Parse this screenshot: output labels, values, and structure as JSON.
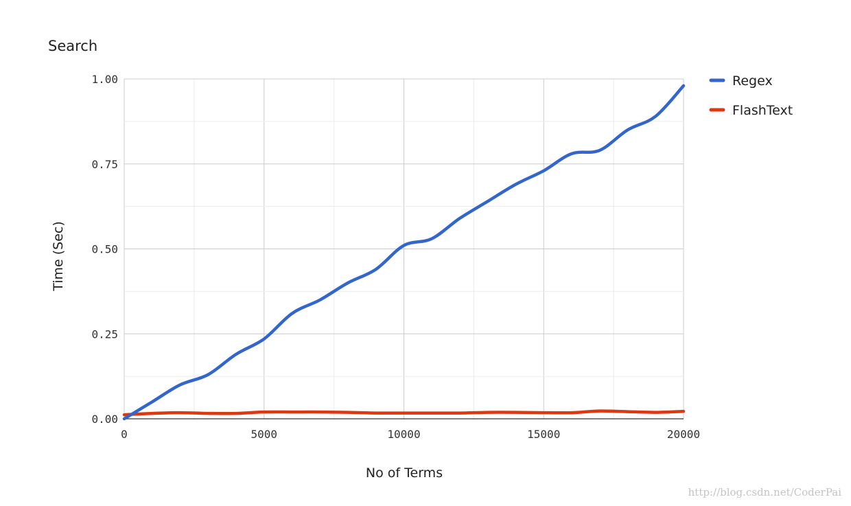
{
  "chart_data": {
    "type": "line",
    "title": "Search",
    "xlabel": "No of Terms",
    "ylabel": "Time (Sec)",
    "xlim": [
      0,
      20000
    ],
    "ylim": [
      0,
      1
    ],
    "x_ticks": [
      "0",
      "5000",
      "10000",
      "15000",
      "20000"
    ],
    "y_ticks": [
      "0.00",
      "0.25",
      "0.50",
      "0.75",
      "1.00"
    ],
    "grid": true,
    "legend_position": "right",
    "x": [
      0,
      1000,
      2000,
      3000,
      4000,
      5000,
      6000,
      7000,
      8000,
      9000,
      10000,
      11000,
      12000,
      13000,
      14000,
      15000,
      16000,
      17000,
      18000,
      19000,
      20000
    ],
    "series": [
      {
        "name": "Regex",
        "color": "#3366cc",
        "values": [
          0.0,
          0.05,
          0.1,
          0.13,
          0.19,
          0.235,
          0.31,
          0.35,
          0.4,
          0.44,
          0.51,
          0.53,
          0.59,
          0.64,
          0.69,
          0.73,
          0.78,
          0.79,
          0.85,
          0.89,
          0.98
        ]
      },
      {
        "name": "FlashText",
        "color": "#dc3912",
        "values": [
          0.012,
          0.016,
          0.018,
          0.016,
          0.016,
          0.02,
          0.02,
          0.02,
          0.019,
          0.017,
          0.017,
          0.017,
          0.017,
          0.019,
          0.019,
          0.018,
          0.018,
          0.023,
          0.021,
          0.019,
          0.022
        ]
      }
    ]
  },
  "watermark": "http://blog.csdn.net/CoderPai"
}
